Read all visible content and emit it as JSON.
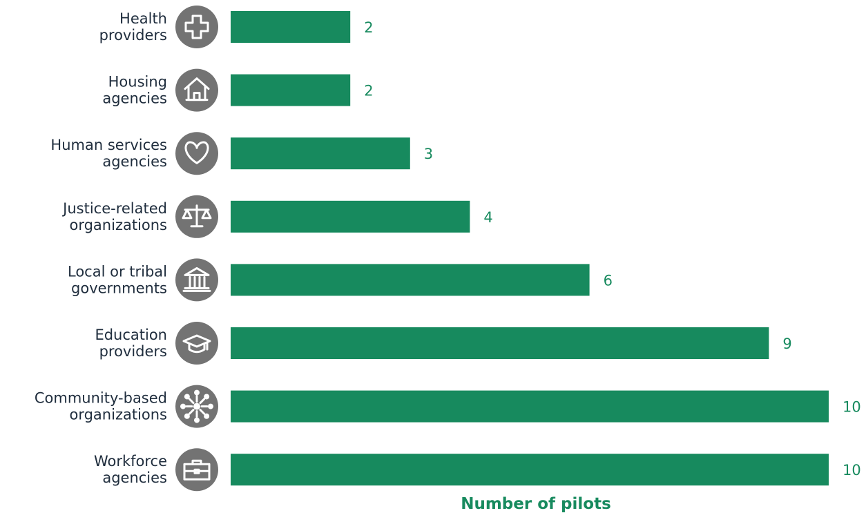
{
  "chart_data": {
    "type": "bar",
    "orientation": "horizontal",
    "categories": [
      [
        "Health",
        "providers"
      ],
      [
        "Housing",
        "agencies"
      ],
      [
        "Human services",
        "agencies"
      ],
      [
        "Justice-related",
        "organizations"
      ],
      [
        "Local or tribal",
        "governments"
      ],
      [
        "Education",
        "providers"
      ],
      [
        "Community-based",
        "organizations"
      ],
      [
        "Workforce",
        "agencies"
      ]
    ],
    "values": [
      2,
      2,
      3,
      4,
      6,
      9,
      10,
      10
    ],
    "value_labels": [
      "2",
      "2",
      "3",
      "4",
      "6",
      "9",
      "10",
      "10"
    ],
    "icons": [
      "plus-cross-icon",
      "house-icon",
      "heart-icon",
      "scales-icon",
      "government-building-icon",
      "graduation-cap-icon",
      "community-network-icon",
      "briefcase-icon"
    ],
    "xlabel": "Number of pilots",
    "xlim": [
      0,
      10
    ],
    "grid": false,
    "legend": "none"
  },
  "colors": {
    "bar": "#178a5e",
    "value_text": "#178a5e",
    "xlabel_text": "#178a5e",
    "icon_circle": "#737373",
    "category_text": "#1f2d3d"
  }
}
